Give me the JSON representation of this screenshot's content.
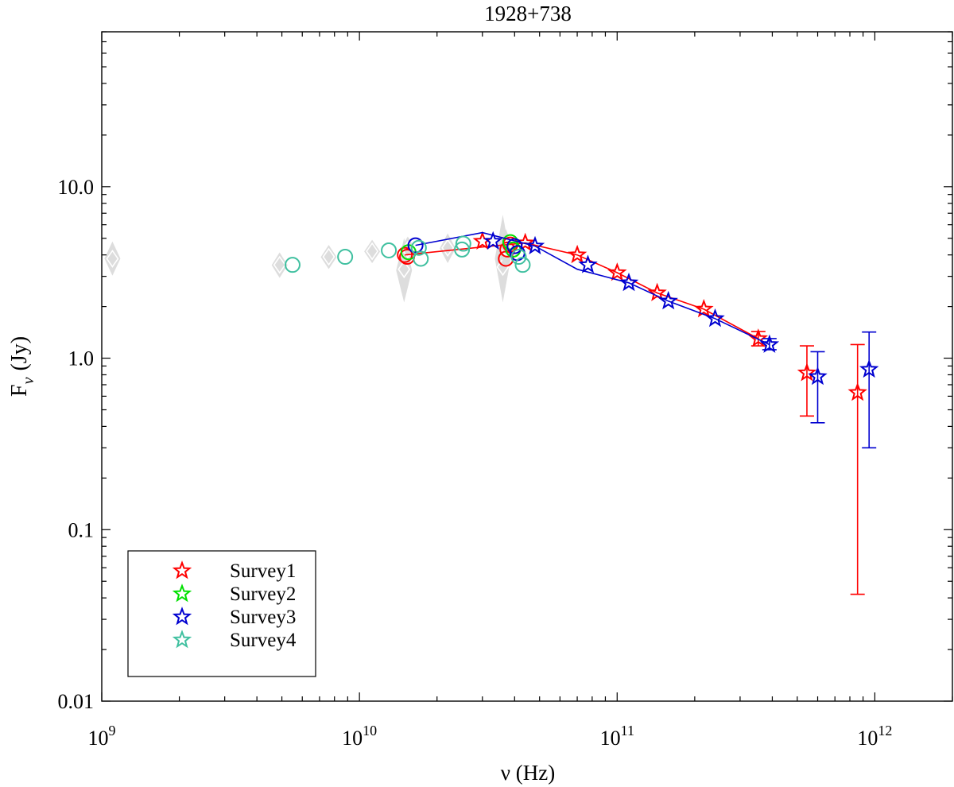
{
  "chart_data": {
    "type": "scatter",
    "title": "1928+738",
    "xlabel": "ν (Hz)",
    "ylabel_main": "F",
    "ylabel_sub": "ν",
    "ylabel_unit": "(Jy)",
    "x_scale": "log",
    "y_scale": "log",
    "xlim": [
      1000000000,
      2000000000000
    ],
    "ylim": [
      0.01,
      80
    ],
    "grid": false,
    "legend_position": "bottom-left",
    "x_ticks": [
      {
        "value": 1000000000,
        "base": "10",
        "exp": "9"
      },
      {
        "value": 10000000000,
        "base": "10",
        "exp": "10"
      },
      {
        "value": 100000000000,
        "base": "10",
        "exp": "11"
      },
      {
        "value": 1000000000000,
        "base": "10",
        "exp": "12"
      }
    ],
    "y_ticks": [
      {
        "value": 0.01,
        "label": "0.01"
      },
      {
        "value": 0.1,
        "label": "0.1"
      },
      {
        "value": 1,
        "label": "1.0"
      },
      {
        "value": 10,
        "label": "10.0"
      }
    ],
    "background_points": {
      "color": "#d9d9d9",
      "marker": "diamond",
      "points": [
        {
          "x": 1100000000,
          "y": 3.8,
          "lo": 3.3,
          "hi": 4.4
        },
        {
          "x": 4900000000,
          "y": 3.5,
          "lo": 3.2,
          "hi": 3.8
        },
        {
          "x": 7600000000,
          "y": 3.9,
          "lo": 3.6,
          "hi": 4.2
        },
        {
          "x": 11200000000,
          "y": 4.2,
          "lo": 3.9,
          "hi": 4.5
        },
        {
          "x": 14900000000,
          "y": 3.3,
          "lo": 2.3,
          "hi": 4.6
        },
        {
          "x": 15400000000,
          "y": 4.3,
          "lo": 3.9,
          "hi": 4.7
        },
        {
          "x": 22000000000,
          "y": 4.4,
          "lo": 3.9,
          "hi": 4.9
        },
        {
          "x": 36000000000,
          "y": 3.4,
          "lo": 2.3,
          "hi": 6.3
        },
        {
          "x": 37000000000,
          "y": 4.4,
          "lo": 3.6,
          "hi": 5.2
        }
      ]
    },
    "series": [
      {
        "name": "Survey1",
        "color": "#ff0000",
        "stars": [
          {
            "x": 30000000000,
            "y": 4.8
          },
          {
            "x": 44000000000,
            "y": 4.7
          },
          {
            "x": 70000000000,
            "y": 4.0
          },
          {
            "x": 100000000000,
            "y": 3.15
          },
          {
            "x": 143000000000,
            "y": 2.4
          },
          {
            "x": 217000000000,
            "y": 1.93
          },
          {
            "x": 353000000000,
            "y": 1.3,
            "lo": 1.18,
            "hi": 1.43
          },
          {
            "x": 545000000000,
            "y": 0.82,
            "lo": 0.46,
            "hi": 1.18
          },
          {
            "x": 857000000000,
            "y": 0.63,
            "lo": 0.042,
            "hi": 1.2
          }
        ],
        "line": [
          {
            "x": 15000000000,
            "y": 4.0
          },
          {
            "x": 30000000000,
            "y": 4.45
          },
          {
            "x": 44000000000,
            "y": 4.7
          },
          {
            "x": 70000000000,
            "y": 4.0
          },
          {
            "x": 100000000000,
            "y": 3.15
          },
          {
            "x": 143000000000,
            "y": 2.4
          },
          {
            "x": 217000000000,
            "y": 1.93
          },
          {
            "x": 353000000000,
            "y": 1.3
          }
        ],
        "circles": [
          {
            "x": 15000000000,
            "y": 4.0
          },
          {
            "x": 15300000000,
            "y": 3.9
          },
          {
            "x": 37000000000,
            "y": 3.8
          },
          {
            "x": 37500000000,
            "y": 4.3
          },
          {
            "x": 38500000000,
            "y": 4.6
          }
        ]
      },
      {
        "name": "Survey2",
        "color": "#00e000",
        "stars": [],
        "line": [],
        "circles": [
          {
            "x": 15500000000,
            "y": 4.15
          },
          {
            "x": 38500000000,
            "y": 4.75
          },
          {
            "x": 39500000000,
            "y": 4.3
          }
        ]
      },
      {
        "name": "Survey3",
        "color": "#0000d0",
        "stars": [
          {
            "x": 33000000000,
            "y": 4.8
          },
          {
            "x": 48000000000,
            "y": 4.5
          },
          {
            "x": 77000000000,
            "y": 3.5
          },
          {
            "x": 111000000000,
            "y": 2.75
          },
          {
            "x": 158000000000,
            "y": 2.15
          },
          {
            "x": 240000000000,
            "y": 1.7
          },
          {
            "x": 390000000000,
            "y": 1.2,
            "lo": 1.12,
            "hi": 1.3
          },
          {
            "x": 600000000000,
            "y": 0.78,
            "lo": 0.42,
            "hi": 1.09
          },
          {
            "x": 950000000000,
            "y": 0.86,
            "lo": 0.3,
            "hi": 1.42
          }
        ],
        "line": [
          {
            "x": 16500000000,
            "y": 4.55
          },
          {
            "x": 30000000000,
            "y": 5.4
          },
          {
            "x": 48000000000,
            "y": 4.5
          },
          {
            "x": 70000000000,
            "y": 3.3
          },
          {
            "x": 111000000000,
            "y": 2.75
          },
          {
            "x": 158000000000,
            "y": 2.15
          },
          {
            "x": 240000000000,
            "y": 1.7
          },
          {
            "x": 390000000000,
            "y": 1.2
          }
        ],
        "circles": [
          {
            "x": 16500000000,
            "y": 4.55
          },
          {
            "x": 40000000000,
            "y": 4.5
          },
          {
            "x": 41000000000,
            "y": 4.1
          }
        ]
      },
      {
        "name": "Survey4",
        "color": "#40c0a0",
        "stars": [],
        "line": [],
        "circles": [
          {
            "x": 5500000000,
            "y": 3.5
          },
          {
            "x": 8800000000,
            "y": 3.9
          },
          {
            "x": 13000000000,
            "y": 4.25
          },
          {
            "x": 17000000000,
            "y": 4.4
          },
          {
            "x": 17300000000,
            "y": 3.8
          },
          {
            "x": 25000000000,
            "y": 4.3
          },
          {
            "x": 25300000000,
            "y": 4.65
          },
          {
            "x": 41500000000,
            "y": 3.9
          },
          {
            "x": 43000000000,
            "y": 3.5
          }
        ]
      }
    ]
  }
}
